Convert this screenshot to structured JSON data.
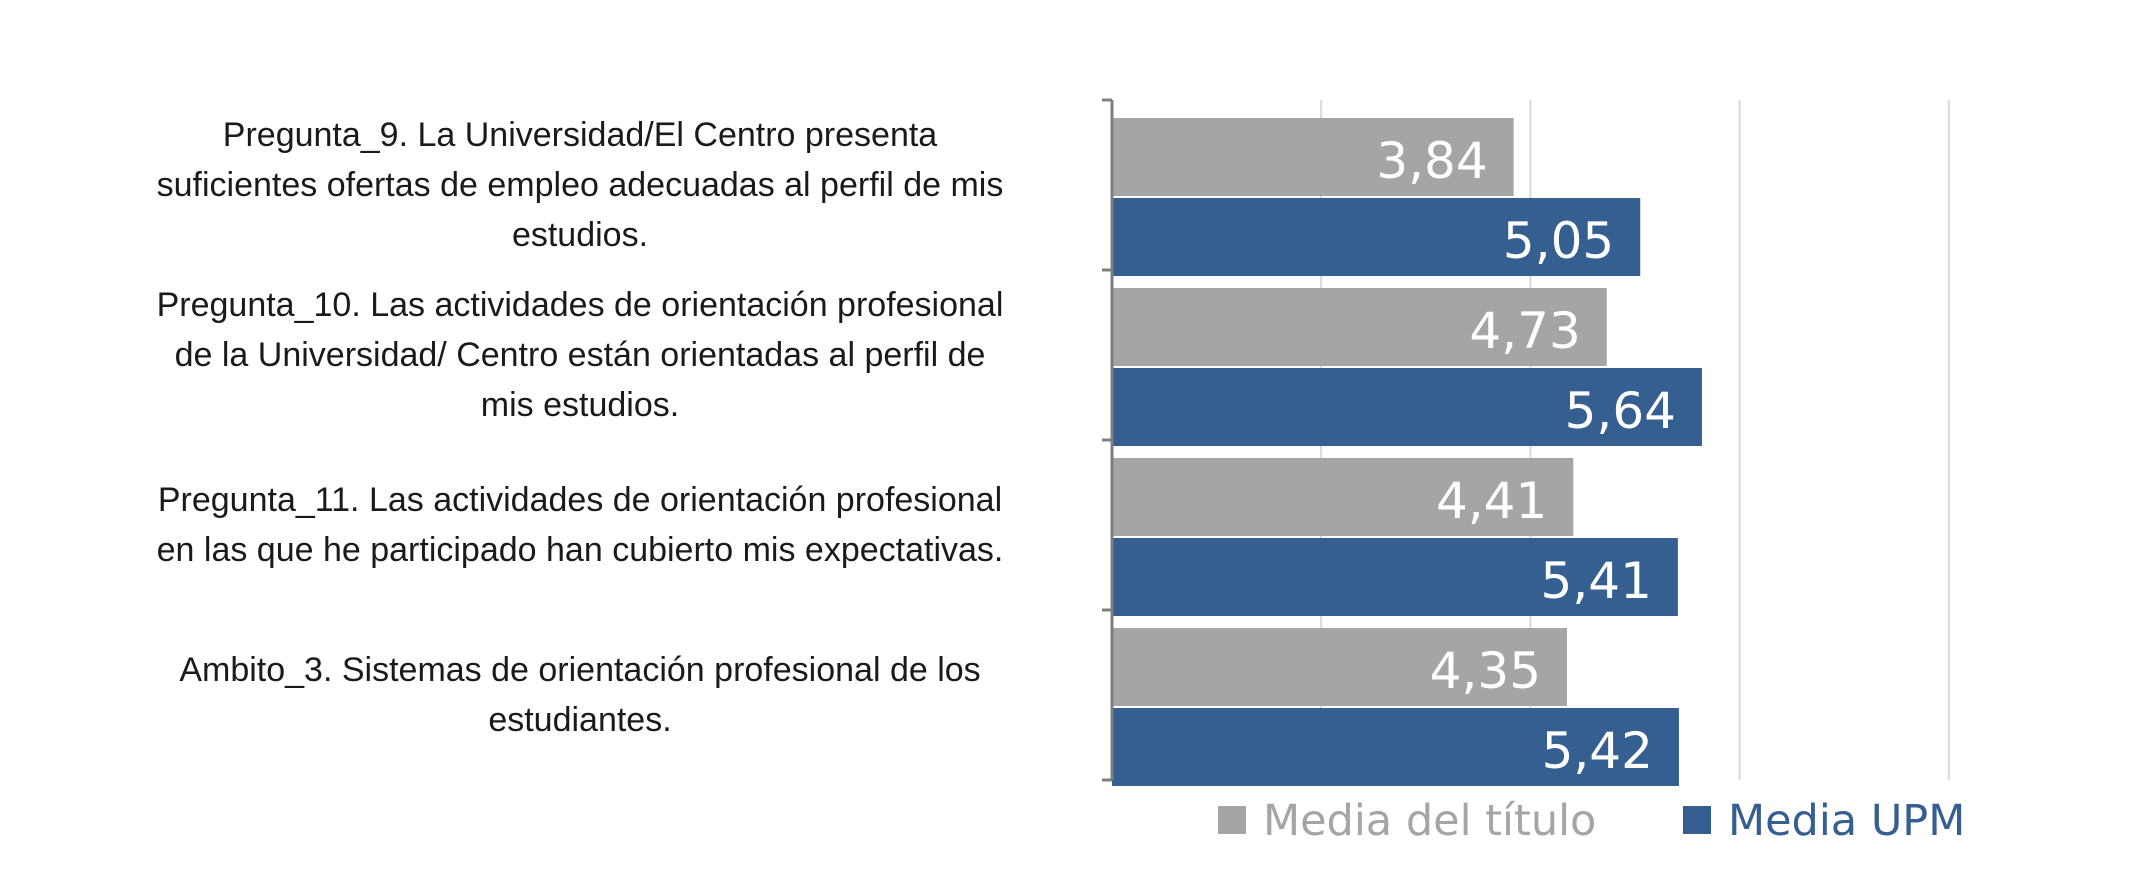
{
  "chart_data": {
    "type": "bar",
    "orientation": "horizontal",
    "categories": [
      "Pregunta_9. La Universidad/El Centro presenta suficientes ofertas de empleo adecuadas al perfil de mis estudios.",
      "Pregunta_10. Las actividades de orientación profesional de la Universidad/ Centro están orientadas al perfil de mis estudios.",
      "Pregunta_11. Las actividades de orientación profesional en las que he participado han cubierto mis expectativas.",
      "Ambito_3. Sistemas de orientación profesional de los estudiantes."
    ],
    "category_lines": [
      [
        "Pregunta_9. La Universidad/El Centro presenta",
        "suficientes ofertas de empleo adecuadas al perfil de mis",
        "estudios."
      ],
      [
        "Pregunta_10. Las actividades de orientación profesional",
        "de la Universidad/ Centro están orientadas al perfil de",
        "mis estudios."
      ],
      [
        "Pregunta_11. Las actividades de orientación profesional",
        "en las que he participado han cubierto mis expectativas."
      ],
      [
        "Ambito_3. Sistemas de orientación profesional de los",
        "estudiantes."
      ]
    ],
    "series": [
      {
        "name": "Media del título",
        "values": [
          3.84,
          4.73,
          4.41,
          4.35
        ],
        "labels": [
          "3,84",
          "4,73",
          "4,41",
          "4,35"
        ],
        "color": "#a5a5a5",
        "legend_text_color": "#a5a5a5"
      },
      {
        "name": "Media UPM",
        "values": [
          5.05,
          5.64,
          5.41,
          5.42
        ],
        "labels": [
          "5,05",
          "5,64",
          "5,41",
          "5,42"
        ],
        "color": "#365f91",
        "legend_text_color": "#365f91"
      }
    ],
    "xlim": [
      0,
      10
    ],
    "grid": true,
    "legend_position": "bottom"
  }
}
